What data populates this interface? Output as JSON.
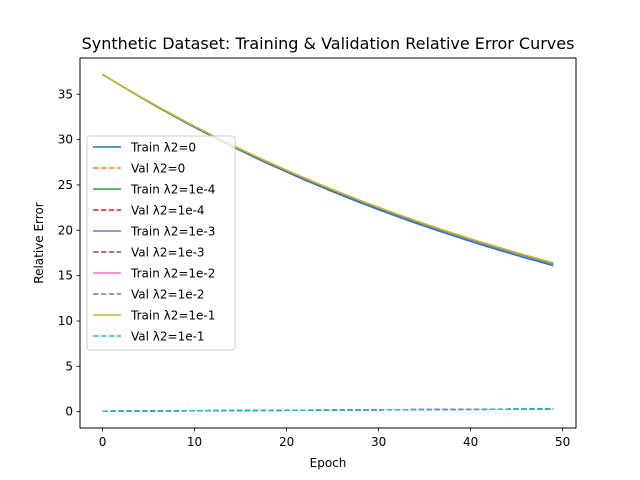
{
  "chart_data": {
    "type": "line",
    "title": "Synthetic Dataset: Training & Validation Relative Error Curves",
    "xlabel": "Epoch",
    "ylabel": "Relative Error",
    "xlim": [
      -2.45,
      51.45
    ],
    "ylim": [
      -1.8,
      39.0
    ],
    "xticks": [
      0,
      10,
      20,
      30,
      40,
      50
    ],
    "yticks": [
      0,
      5,
      10,
      15,
      20,
      25,
      30,
      35
    ],
    "grid": false,
    "legend_position": "center-left",
    "series": [
      {
        "name": "Train λ2=0",
        "color": "#1f77b4",
        "dash": "solid",
        "start": 37.2,
        "end": 16.1,
        "shape": "decay"
      },
      {
        "name": "Val   λ2=0",
        "color": "#ff7f0e",
        "dash": "dashed",
        "start": 0.05,
        "end": 0.3,
        "shape": "linear"
      },
      {
        "name": "Train λ2=1e-4",
        "color": "#2ca02c",
        "dash": "solid",
        "start": 37.2,
        "end": 16.3,
        "shape": "decay"
      },
      {
        "name": "Val   λ2=1e-4",
        "color": "#d62728",
        "dash": "dashed",
        "start": 0.05,
        "end": 0.3,
        "shape": "linear"
      },
      {
        "name": "Train λ2=1e-3",
        "color": "#9467bd",
        "dash": "solid",
        "start": 37.2,
        "end": 16.3,
        "shape": "decay"
      },
      {
        "name": "Val   λ2=1e-3",
        "color": "#8c564b",
        "dash": "dashed",
        "start": 0.05,
        "end": 0.3,
        "shape": "linear"
      },
      {
        "name": "Train λ2=1e-2",
        "color": "#e377c2",
        "dash": "solid",
        "start": 37.2,
        "end": 16.4,
        "shape": "decay"
      },
      {
        "name": "Val   λ2=1e-2",
        "color": "#7f7f7f",
        "dash": "dashed",
        "start": 0.05,
        "end": 0.3,
        "shape": "linear"
      },
      {
        "name": "Train λ2=1e-1",
        "color": "#bcbd22",
        "dash": "solid",
        "start": 37.2,
        "end": 16.4,
        "shape": "decay"
      },
      {
        "name": "Val   λ2=1e-1",
        "color": "#17becf",
        "dash": "dashed",
        "start": 0.05,
        "end": 0.3,
        "shape": "linear"
      }
    ],
    "epochs": 50
  }
}
